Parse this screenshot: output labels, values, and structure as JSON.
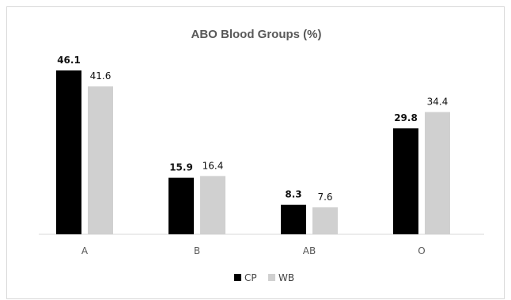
{
  "chart_data": {
    "type": "bar",
    "title": "ABO Blood Groups (%)",
    "categories": [
      "A",
      "B",
      "AB",
      "O"
    ],
    "series": [
      {
        "name": "CP",
        "values": [
          46.1,
          15.9,
          8.3,
          29.8
        ],
        "color": "#000000"
      },
      {
        "name": "WB",
        "values": [
          41.6,
          16.4,
          7.6,
          34.4
        ],
        "color": "#d0d0d0"
      }
    ],
    "labels": {
      "CP": [
        "46.1",
        "15.9",
        "8.3",
        "29.8"
      ],
      "WB": [
        "41.6",
        "16.4",
        "7.6",
        "34.4"
      ]
    },
    "ylim": [
      0,
      46.1
    ],
    "grid": false,
    "legend": "bottom"
  }
}
